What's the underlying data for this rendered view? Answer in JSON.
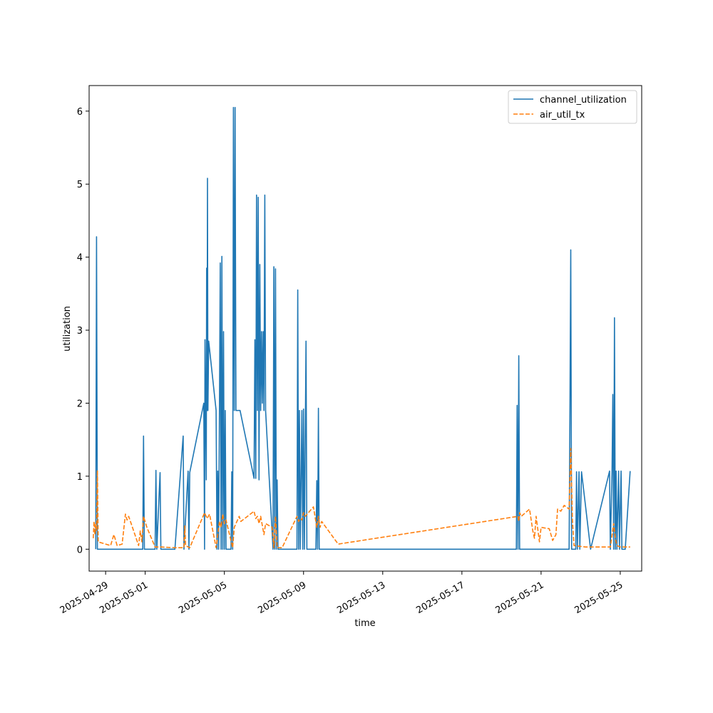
{
  "chart_data": {
    "type": "line",
    "title": "",
    "xlabel": "time",
    "ylabel": "utilization",
    "xlim": [
      "2025-04-28T04:00",
      "2025-05-26T02:00"
    ],
    "ylim": [
      -0.3,
      6.35
    ],
    "x_ticks": [
      "2025-04-29",
      "2025-05-01",
      "2025-05-05",
      "2025-05-09",
      "2025-05-13",
      "2025-05-17",
      "2025-05-21",
      "2025-05-25"
    ],
    "y_ticks": [
      0,
      1,
      2,
      3,
      4,
      5,
      6
    ],
    "grid": false,
    "legend": "upper right",
    "series": [
      {
        "name": "channel_utilization",
        "color": "#1f77b4",
        "style": "solid",
        "points": [
          [
            "2025-04-28T12:00",
            0
          ],
          [
            "2025-04-28T13:00",
            4.28
          ],
          [
            "2025-04-28T14:00",
            0
          ],
          [
            "2025-04-30T21:00",
            0
          ],
          [
            "2025-04-30T22:00",
            1.55
          ],
          [
            "2025-04-30T23:00",
            0
          ],
          [
            "2025-05-01T12:00",
            0
          ],
          [
            "2025-05-01T13:00",
            1.08
          ],
          [
            "2025-05-01T14:00",
            0
          ],
          [
            "2025-05-01T18:00",
            1.05
          ],
          [
            "2025-05-01T19:00",
            0
          ],
          [
            "2025-05-02T12:00",
            0
          ],
          [
            "2025-05-02T22:00",
            1.55
          ],
          [
            "2025-05-02T23:00",
            0
          ],
          [
            "2025-05-03T04:00",
            1.07
          ],
          [
            "2025-05-03T05:00",
            0
          ],
          [
            "2025-05-03T06:00",
            1.05
          ],
          [
            "2025-05-03T23:00",
            2.0
          ],
          [
            "2025-05-04T00:00",
            0
          ],
          [
            "2025-05-04T00:30",
            2.87
          ],
          [
            "2025-05-04T02:00",
            0.95
          ],
          [
            "2025-05-04T02:30",
            3.85
          ],
          [
            "2025-05-04T03:00",
            1.9
          ],
          [
            "2025-05-04T03:30",
            5.08
          ],
          [
            "2025-05-04T04:00",
            1.9
          ],
          [
            "2025-05-04T05:00",
            2.85
          ],
          [
            "2025-05-04T14:00",
            1.9
          ],
          [
            "2025-05-04T15:00",
            0
          ],
          [
            "2025-05-04T16:00",
            1.07
          ],
          [
            "2025-05-04T17:00",
            0
          ],
          [
            "2025-05-04T18:00",
            1.9
          ],
          [
            "2025-05-04T19:00",
            3.92
          ],
          [
            "2025-05-04T20:00",
            0
          ],
          [
            "2025-05-04T21:00",
            4.01
          ],
          [
            "2025-05-04T22:00",
            0
          ],
          [
            "2025-05-04T23:00",
            2.98
          ],
          [
            "2025-05-05T00:00",
            0
          ],
          [
            "2025-05-05T01:00",
            1.9
          ],
          [
            "2025-05-05T02:00",
            0
          ],
          [
            "2025-05-05T08:00",
            0
          ],
          [
            "2025-05-05T09:00",
            1.06
          ],
          [
            "2025-05-05T10:00",
            0
          ],
          [
            "2025-05-05T11:00",
            6.05
          ],
          [
            "2025-05-05T12:00",
            1.9
          ],
          [
            "2025-05-05T13:00",
            6.05
          ],
          [
            "2025-05-05T14:00",
            1.9
          ],
          [
            "2025-05-05T19:00",
            1.9
          ],
          [
            "2025-05-06T12:00",
            0.97
          ],
          [
            "2025-05-06T13:00",
            2.87
          ],
          [
            "2025-05-06T14:00",
            0.97
          ],
          [
            "2025-05-06T15:00",
            4.85
          ],
          [
            "2025-05-06T16:00",
            1.9
          ],
          [
            "2025-05-06T17:00",
            4.82
          ],
          [
            "2025-05-06T18:00",
            0.95
          ],
          [
            "2025-05-06T19:00",
            3.9
          ],
          [
            "2025-05-06T20:00",
            1.9
          ],
          [
            "2025-05-06T21:00",
            2.98
          ],
          [
            "2025-05-06T22:00",
            2.0
          ],
          [
            "2025-05-06T23:00",
            2.98
          ],
          [
            "2025-05-07T00:00",
            1.9
          ],
          [
            "2025-05-07T01:00",
            4.85
          ],
          [
            "2025-05-07T02:00",
            1.9
          ],
          [
            "2025-05-07T11:00",
            0
          ],
          [
            "2025-05-07T12:00",
            3.87
          ],
          [
            "2025-05-07T13:00",
            0
          ],
          [
            "2025-05-07T14:00",
            3.84
          ],
          [
            "2025-05-07T15:00",
            0
          ],
          [
            "2025-05-07T16:00",
            0.95
          ],
          [
            "2025-05-07T17:00",
            0
          ],
          [
            "2025-05-08T16:00",
            0
          ],
          [
            "2025-05-08T17:00",
            3.55
          ],
          [
            "2025-05-08T18:00",
            0
          ],
          [
            "2025-05-08T19:00",
            1.9
          ],
          [
            "2025-05-08T20:00",
            0
          ],
          [
            "2025-05-08T22:00",
            1.9
          ],
          [
            "2025-05-08T23:00",
            0
          ],
          [
            "2025-05-09T00:00",
            1.92
          ],
          [
            "2025-05-09T01:00",
            0
          ],
          [
            "2025-05-09T03:00",
            2.85
          ],
          [
            "2025-05-09T04:00",
            0
          ],
          [
            "2025-05-09T15:00",
            0
          ],
          [
            "2025-05-09T16:00",
            0.94
          ],
          [
            "2025-05-09T17:00",
            0
          ],
          [
            "2025-05-09T18:00",
            1.93
          ],
          [
            "2025-05-09T19:00",
            0
          ],
          [
            "2025-05-19T18:00",
            0
          ],
          [
            "2025-05-19T19:00",
            1.97
          ],
          [
            "2025-05-19T20:00",
            0
          ],
          [
            "2025-05-19T21:00",
            2.65
          ],
          [
            "2025-05-19T22:00",
            0
          ],
          [
            "2025-05-22T10:00",
            0
          ],
          [
            "2025-05-22T11:00",
            1.97
          ],
          [
            "2025-05-22T12:00",
            4.1
          ],
          [
            "2025-05-22T13:00",
            0
          ],
          [
            "2025-05-22T18:00",
            0
          ],
          [
            "2025-05-22T19:00",
            1.06
          ],
          [
            "2025-05-22T20:00",
            0
          ],
          [
            "2025-05-22T22:00",
            1.06
          ],
          [
            "2025-05-22T23:00",
            0
          ],
          [
            "2025-05-23T01:00",
            1.06
          ],
          [
            "2025-05-23T12:00",
            0
          ],
          [
            "2025-05-24T11:00",
            1.07
          ],
          [
            "2025-05-24T12:00",
            0
          ],
          [
            "2025-05-24T14:00",
            1.07
          ],
          [
            "2025-05-24T15:00",
            2.12
          ],
          [
            "2025-05-24T16:00",
            0
          ],
          [
            "2025-05-24T17:00",
            3.17
          ],
          [
            "2025-05-24T18:00",
            0
          ],
          [
            "2025-05-24T19:00",
            1.07
          ],
          [
            "2025-05-24T20:00",
            0
          ],
          [
            "2025-05-24T22:00",
            1.07
          ],
          [
            "2025-05-24T23:00",
            0
          ],
          [
            "2025-05-25T01:00",
            1.07
          ],
          [
            "2025-05-25T02:00",
            0
          ],
          [
            "2025-05-25T06:00",
            0
          ],
          [
            "2025-05-25T12:00",
            1.07
          ]
        ]
      },
      {
        "name": "air_util_tx",
        "color": "#ff7f0e",
        "style": "dashed",
        "points": [
          [
            "2025-04-28T09:00",
            0.15
          ],
          [
            "2025-04-28T10:00",
            0.38
          ],
          [
            "2025-04-28T11:00",
            0.2
          ],
          [
            "2025-04-28T12:00",
            0.35
          ],
          [
            "2025-04-28T13:00",
            0.25
          ],
          [
            "2025-04-28T14:00",
            1.08
          ],
          [
            "2025-04-28T15:00",
            0.1
          ],
          [
            "2025-04-29T06:00",
            0.05
          ],
          [
            "2025-04-29T10:00",
            0.2
          ],
          [
            "2025-04-29T14:00",
            0.05
          ],
          [
            "2025-04-29T20:00",
            0.07
          ],
          [
            "2025-04-30T00:00",
            0.48
          ],
          [
            "2025-04-30T02:00",
            0.4
          ],
          [
            "2025-04-30T04:00",
            0.45
          ],
          [
            "2025-04-30T10:00",
            0.25
          ],
          [
            "2025-04-30T16:00",
            0.05
          ],
          [
            "2025-04-30T18:00",
            0.25
          ],
          [
            "2025-04-30T20:00",
            0.1
          ],
          [
            "2025-04-30T22:00",
            0.45
          ],
          [
            "2025-05-01T02:00",
            0.3
          ],
          [
            "2025-05-01T12:00",
            0.03
          ],
          [
            "2025-05-01T20:00",
            0.03
          ],
          [
            "2025-05-02T12:00",
            0.02
          ],
          [
            "2025-05-02T23:00",
            0.02
          ],
          [
            "2025-05-03T00:00",
            0.32
          ],
          [
            "2025-05-03T01:00",
            0.05
          ],
          [
            "2025-05-03T06:00",
            0.02
          ],
          [
            "2025-05-04T00:00",
            0.5
          ],
          [
            "2025-05-04T03:00",
            0.42
          ],
          [
            "2025-05-04T06:00",
            0.48
          ],
          [
            "2025-05-04T14:00",
            0.02
          ],
          [
            "2025-05-04T18:00",
            0.38
          ],
          [
            "2025-05-04T20:00",
            0.3
          ],
          [
            "2025-05-04T22:00",
            0.48
          ],
          [
            "2025-05-05T00:00",
            0.35
          ],
          [
            "2025-05-05T02:00",
            0.4
          ],
          [
            "2025-05-05T10:00",
            0.02
          ],
          [
            "2025-05-05T12:00",
            0.3
          ],
          [
            "2025-05-05T14:00",
            0.35
          ],
          [
            "2025-05-05T18:00",
            0.45
          ],
          [
            "2025-05-05T20:00",
            0.38
          ],
          [
            "2025-05-06T12:00",
            0.52
          ],
          [
            "2025-05-06T14:00",
            0.42
          ],
          [
            "2025-05-06T16:00",
            0.45
          ],
          [
            "2025-05-06T18:00",
            0.35
          ],
          [
            "2025-05-06T20:00",
            0.45
          ],
          [
            "2025-05-07T00:00",
            0.2
          ],
          [
            "2025-05-07T02:00",
            0.35
          ],
          [
            "2025-05-07T10:00",
            0.3
          ],
          [
            "2025-05-07T12:00",
            0.02
          ],
          [
            "2025-05-07T14:00",
            0.45
          ],
          [
            "2025-05-07T16:00",
            0.02
          ],
          [
            "2025-05-07T22:00",
            0.02
          ],
          [
            "2025-05-08T16:00",
            0.45
          ],
          [
            "2025-05-08T18:00",
            0.38
          ],
          [
            "2025-05-08T20:00",
            0.42
          ],
          [
            "2025-05-08T22:00",
            0.4
          ],
          [
            "2025-05-09T00:00",
            0.5
          ],
          [
            "2025-05-09T02:00",
            0.45
          ],
          [
            "2025-05-09T12:00",
            0.58
          ],
          [
            "2025-05-09T16:00",
            0.3
          ],
          [
            "2025-05-09T18:00",
            0.45
          ],
          [
            "2025-05-09T20:00",
            0.3
          ],
          [
            "2025-05-09T22:00",
            0.38
          ],
          [
            "2025-05-10T18:00",
            0.07
          ],
          [
            "2025-05-19T20:00",
            0.45
          ],
          [
            "2025-05-19T21:00",
            0.38
          ],
          [
            "2025-05-19T22:00",
            0.5
          ],
          [
            "2025-05-20T00:00",
            0.45
          ],
          [
            "2025-05-20T10:00",
            0.55
          ],
          [
            "2025-05-20T14:00",
            0.25
          ],
          [
            "2025-05-20T16:00",
            0.15
          ],
          [
            "2025-05-20T18:00",
            0.45
          ],
          [
            "2025-05-20T22:00",
            0.1
          ],
          [
            "2025-05-21T00:00",
            0.3
          ],
          [
            "2025-05-21T10:00",
            0.28
          ],
          [
            "2025-05-21T14:00",
            0.12
          ],
          [
            "2025-05-21T18:00",
            0.2
          ],
          [
            "2025-05-21T20:00",
            0.55
          ],
          [
            "2025-05-22T00:00",
            0.52
          ],
          [
            "2025-05-22T04:00",
            0.6
          ],
          [
            "2025-05-22T10:00",
            0.55
          ],
          [
            "2025-05-22T12:00",
            1.38
          ],
          [
            "2025-05-22T14:00",
            0.4
          ],
          [
            "2025-05-22T16:00",
            0.05
          ],
          [
            "2025-05-23T06:00",
            0.03
          ],
          [
            "2025-05-24T12:00",
            0.03
          ],
          [
            "2025-05-24T16:00",
            0.35
          ],
          [
            "2025-05-24T18:00",
            0.15
          ],
          [
            "2025-05-24T20:00",
            0.05
          ],
          [
            "2025-05-25T00:00",
            0.03
          ],
          [
            "2025-05-25T12:00",
            0.03
          ]
        ]
      }
    ]
  }
}
